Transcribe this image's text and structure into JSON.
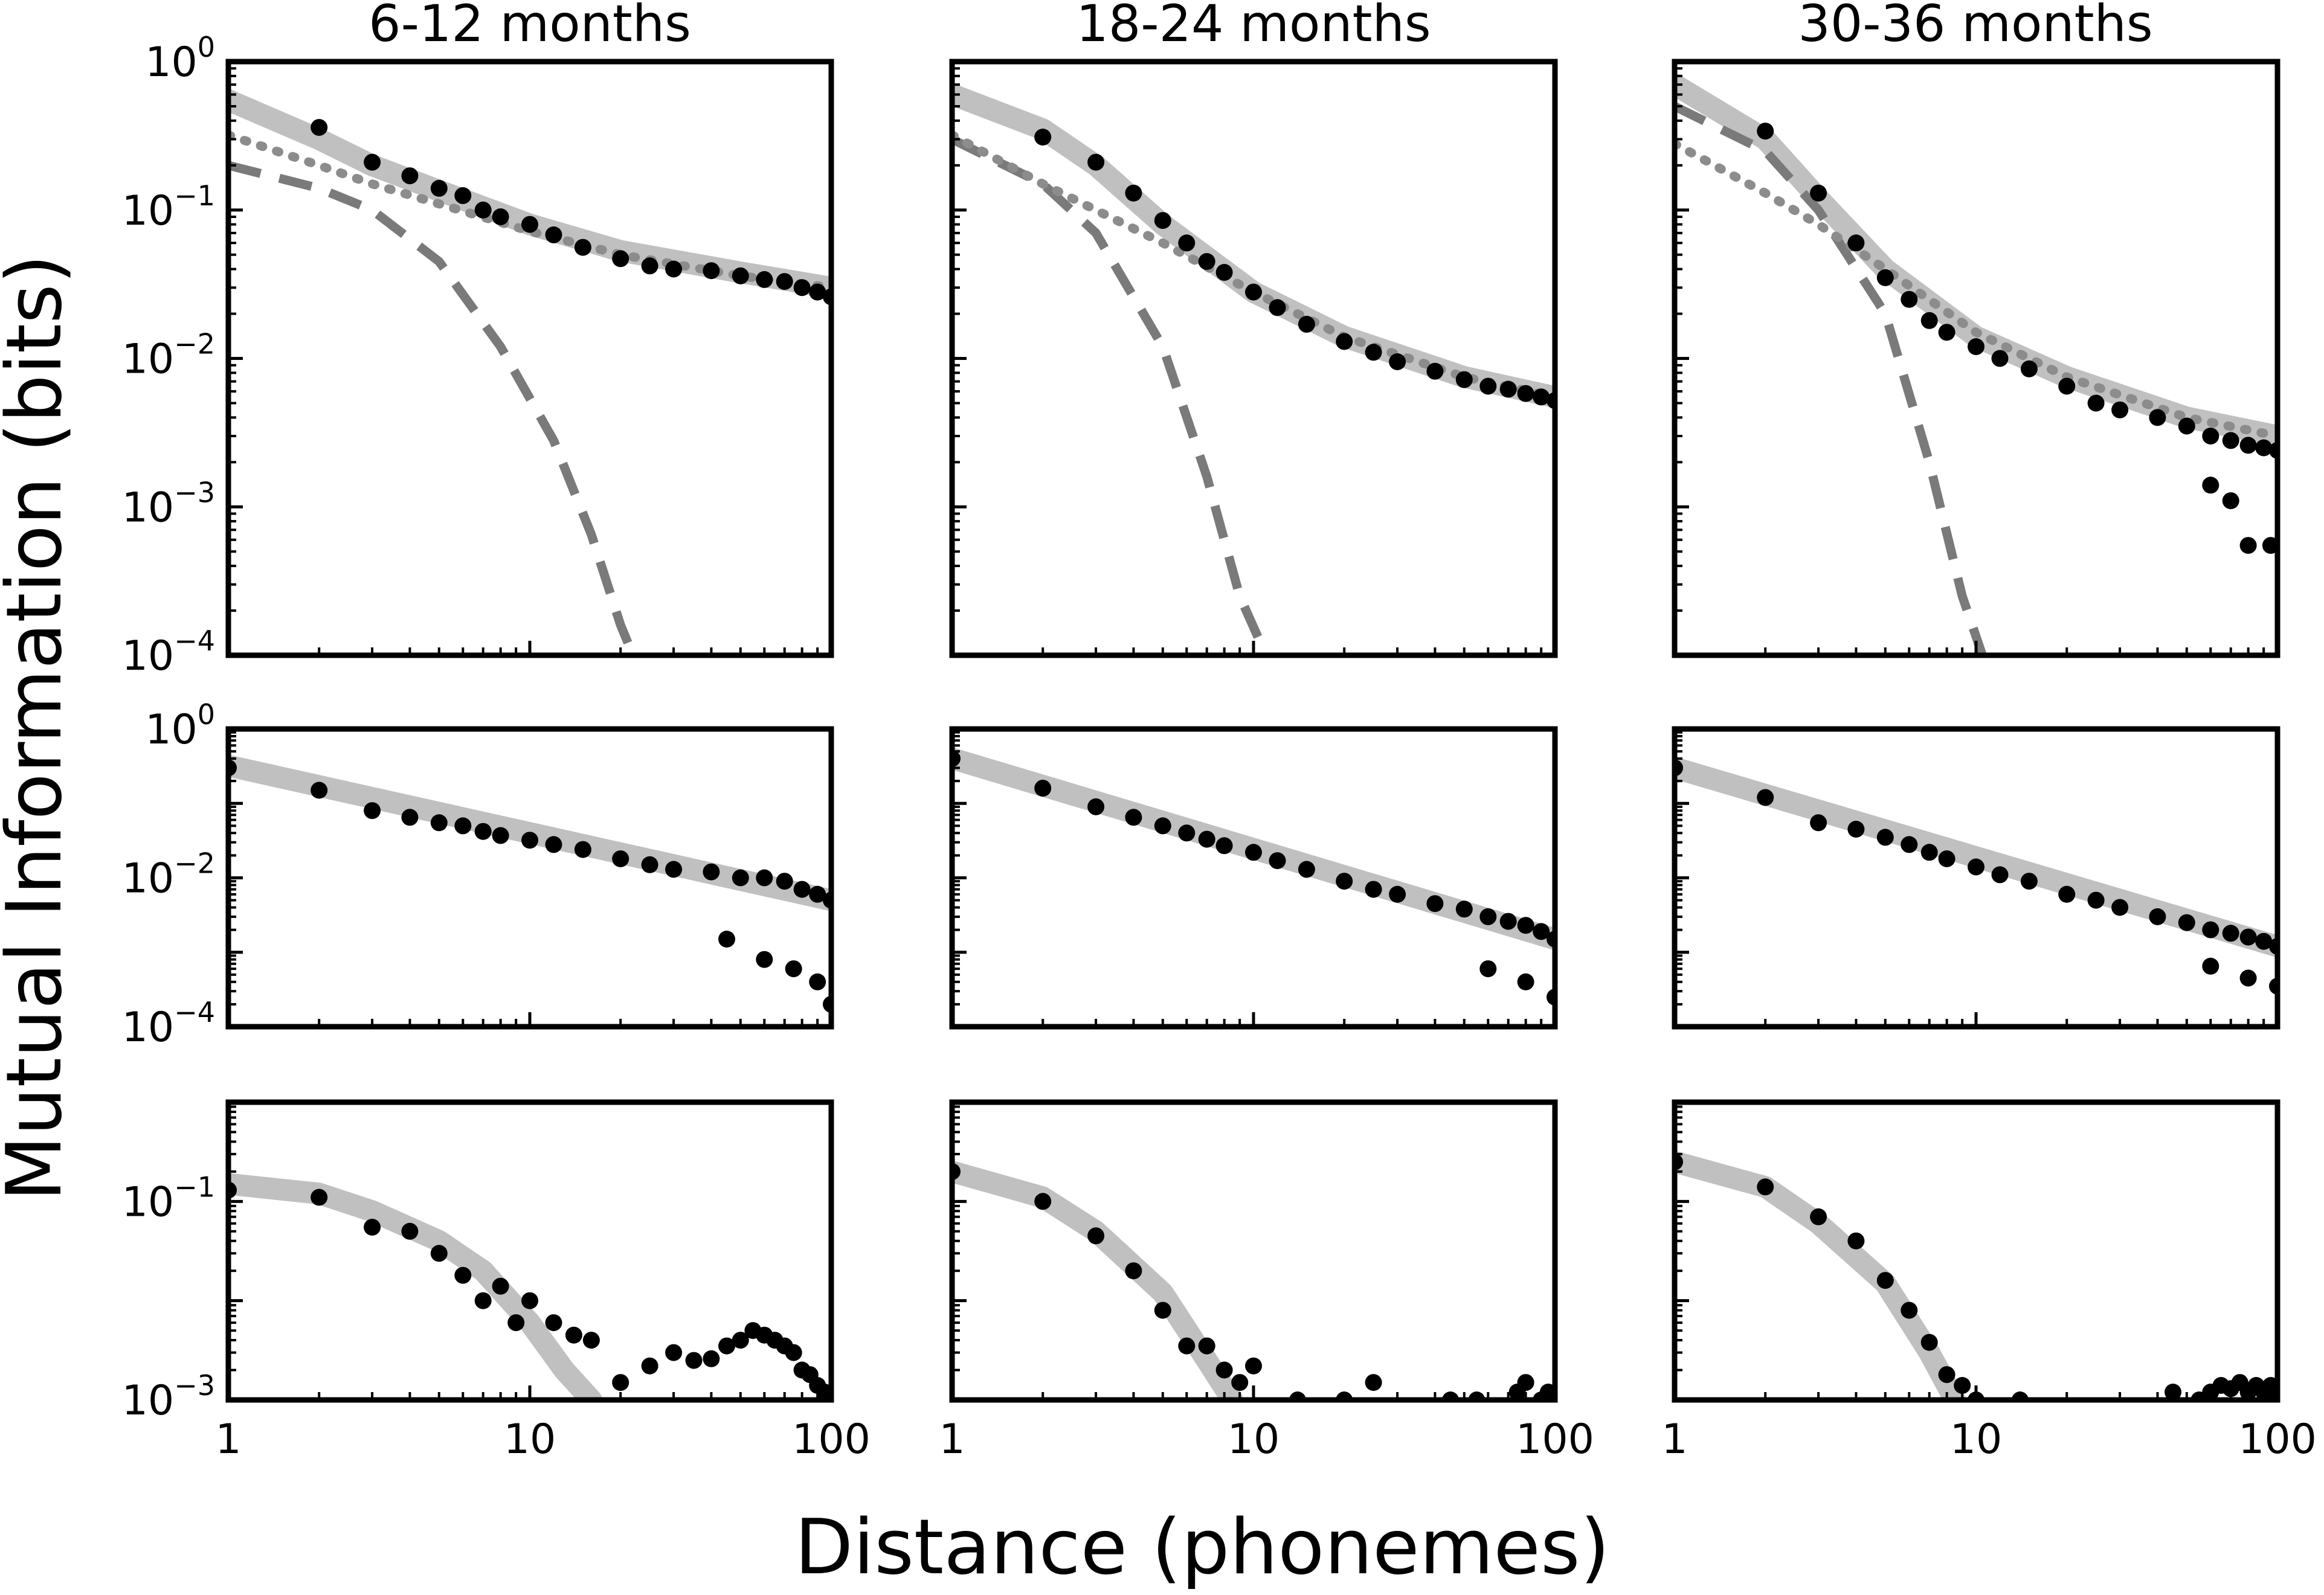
{
  "figure": {
    "ylabel": "Mutual Information (bits)",
    "xlabel": "Distance (phonemes)",
    "columns": [
      "6-12 months",
      "18-24 months",
      "30-36 months"
    ],
    "x_tick_labels": [
      "1",
      "10",
      "100"
    ]
  },
  "chart_data": [
    {
      "type": "scatter",
      "panel": "row1-col1",
      "title": "6-12 months",
      "xscale": "log",
      "yscale": "log",
      "xlim": [
        1,
        100
      ],
      "ylim": [
        0.0001,
        1
      ],
      "xticks": [
        "1",
        "10",
        "100"
      ],
      "yticks": [
        {
          "value": 1,
          "base": "10",
          "exp": "0"
        },
        {
          "value": 0.1,
          "base": "10",
          "exp": "−1"
        },
        {
          "value": 0.01,
          "base": "10",
          "exp": "−2"
        },
        {
          "value": 0.001,
          "base": "10",
          "exp": "−3"
        },
        {
          "value": 0.0001,
          "base": "10",
          "exp": "−4"
        }
      ],
      "data_points": {
        "x": [
          2,
          3,
          4,
          5,
          6,
          7,
          8,
          10,
          12,
          15,
          20,
          25,
          30,
          40,
          50,
          60,
          70,
          80,
          90,
          100
        ],
        "y": [
          0.36,
          0.21,
          0.17,
          0.14,
          0.125,
          0.1,
          0.09,
          0.08,
          0.068,
          0.056,
          0.047,
          0.042,
          0.04,
          0.039,
          0.036,
          0.034,
          0.033,
          0.03,
          0.028,
          0.026
        ]
      },
      "fit_curves": [
        {
          "style": "thick-light-gray",
          "x": [
            1,
            2,
            3,
            5,
            10,
            20,
            50,
            100
          ],
          "y": [
            0.55,
            0.3,
            0.2,
            0.135,
            0.08,
            0.053,
            0.038,
            0.03
          ]
        },
        {
          "style": "dashed-gray",
          "x": [
            1,
            2,
            3,
            5,
            8,
            12,
            16,
            20,
            22
          ],
          "y": [
            0.2,
            0.14,
            0.1,
            0.045,
            0.012,
            0.0028,
            0.00065,
            0.00016,
            0.0001
          ]
        },
        {
          "style": "dotted-gray",
          "x": [
            1,
            2,
            3,
            5,
            10,
            20,
            50,
            100
          ],
          "y": [
            0.32,
            0.2,
            0.15,
            0.11,
            0.072,
            0.05,
            0.036,
            0.03
          ]
        }
      ]
    },
    {
      "type": "scatter",
      "panel": "row1-col2",
      "title": "18-24 months",
      "xscale": "log",
      "yscale": "log",
      "xlim": [
        1,
        100
      ],
      "ylim": [
        0.0001,
        1
      ],
      "xticks": [
        "1",
        "10",
        "100"
      ],
      "yticks": [],
      "data_points": {
        "x": [
          2,
          3,
          4,
          5,
          6,
          7,
          8,
          10,
          12,
          15,
          20,
          25,
          30,
          40,
          50,
          60,
          70,
          80,
          90,
          100
        ],
        "y": [
          0.31,
          0.21,
          0.13,
          0.085,
          0.06,
          0.045,
          0.038,
          0.028,
          0.022,
          0.017,
          0.013,
          0.011,
          0.0095,
          0.0082,
          0.0072,
          0.0065,
          0.0062,
          0.0058,
          0.0055,
          0.0052
        ]
      },
      "fit_curves": [
        {
          "style": "thick-light-gray",
          "x": [
            1,
            2,
            3,
            5,
            10,
            20,
            50,
            100
          ],
          "y": [
            0.6,
            0.35,
            0.2,
            0.08,
            0.028,
            0.014,
            0.0075,
            0.0055
          ]
        },
        {
          "style": "dashed-gray",
          "x": [
            1,
            2,
            3,
            5,
            7,
            9,
            11
          ],
          "y": [
            0.3,
            0.15,
            0.07,
            0.012,
            0.0016,
            0.00025,
            0.0001
          ]
        },
        {
          "style": "dotted-gray",
          "x": [
            1,
            2,
            3,
            5,
            10,
            20,
            50,
            100
          ],
          "y": [
            0.32,
            0.15,
            0.1,
            0.06,
            0.028,
            0.014,
            0.0075,
            0.0055
          ]
        }
      ]
    },
    {
      "type": "scatter",
      "panel": "row1-col3",
      "title": "30-36 months",
      "xscale": "log",
      "yscale": "log",
      "xlim": [
        1,
        100
      ],
      "ylim": [
        0.0001,
        1
      ],
      "xticks": [
        "1",
        "10",
        "100"
      ],
      "yticks": [],
      "data_points": {
        "x": [
          2,
          3,
          4,
          5,
          6,
          7,
          8,
          10,
          12,
          15,
          20,
          25,
          30,
          40,
          50,
          60,
          70,
          80,
          90,
          100,
          60,
          70,
          80,
          95
        ],
        "y": [
          0.34,
          0.13,
          0.06,
          0.035,
          0.025,
          0.018,
          0.015,
          0.012,
          0.01,
          0.0085,
          0.0065,
          0.005,
          0.0045,
          0.004,
          0.0035,
          0.003,
          0.0028,
          0.0026,
          0.0025,
          0.0024,
          0.0014,
          0.0011,
          0.00055,
          0.00055
        ]
      },
      "fit_curves": [
        {
          "style": "thick-light-gray",
          "x": [
            1,
            2,
            3,
            5,
            10,
            20,
            50,
            100
          ],
          "y": [
            0.7,
            0.3,
            0.12,
            0.04,
            0.014,
            0.0075,
            0.004,
            0.003
          ]
        },
        {
          "style": "dashed-gray",
          "x": [
            1,
            2,
            3,
            5,
            7,
            9,
            10.5
          ],
          "y": [
            0.5,
            0.25,
            0.1,
            0.02,
            0.002,
            0.00025,
            0.0001
          ]
        },
        {
          "style": "dotted-gray",
          "x": [
            1,
            2,
            3,
            5,
            10,
            20,
            50,
            100
          ],
          "y": [
            0.28,
            0.13,
            0.08,
            0.04,
            0.015,
            0.0075,
            0.004,
            0.003
          ]
        }
      ]
    },
    {
      "type": "scatter",
      "panel": "row2-col1",
      "xscale": "log",
      "yscale": "log",
      "xlim": [
        1,
        100
      ],
      "ylim": [
        0.0001,
        1
      ],
      "xticks": [
        "1",
        "10",
        "100"
      ],
      "yticks": [
        {
          "value": 1,
          "base": "10",
          "exp": "0"
        },
        {
          "value": 0.01,
          "base": "10",
          "exp": "−2"
        },
        {
          "value": 0.0001,
          "base": "10",
          "exp": "−4"
        }
      ],
      "data_points": {
        "x": [
          1,
          2,
          3,
          4,
          5,
          6,
          7,
          8,
          10,
          12,
          15,
          20,
          25,
          30,
          40,
          50,
          60,
          70,
          80,
          90,
          100,
          45,
          60,
          75,
          90,
          100
        ],
        "y": [
          0.3,
          0.15,
          0.08,
          0.065,
          0.055,
          0.05,
          0.042,
          0.037,
          0.032,
          0.028,
          0.024,
          0.018,
          0.015,
          0.013,
          0.012,
          0.01,
          0.01,
          0.009,
          0.007,
          0.006,
          0.005,
          0.0015,
          0.0008,
          0.0006,
          0.0004,
          0.0002
        ]
      },
      "fit_curves": [
        {
          "style": "thick-light-gray",
          "x": [
            1,
            100
          ],
          "y": [
            0.32,
            0.005
          ]
        }
      ]
    },
    {
      "type": "scatter",
      "panel": "row2-col2",
      "xscale": "log",
      "yscale": "log",
      "xlim": [
        1,
        100
      ],
      "ylim": [
        0.0001,
        1
      ],
      "xticks": [
        "1",
        "10",
        "100"
      ],
      "yticks": [],
      "data_points": {
        "x": [
          1,
          2,
          3,
          4,
          5,
          6,
          7,
          8,
          10,
          12,
          15,
          20,
          25,
          30,
          40,
          50,
          60,
          70,
          80,
          90,
          100,
          60,
          80,
          100
        ],
        "y": [
          0.4,
          0.16,
          0.09,
          0.065,
          0.05,
          0.04,
          0.033,
          0.027,
          0.022,
          0.017,
          0.013,
          0.009,
          0.007,
          0.006,
          0.0045,
          0.0038,
          0.003,
          0.0026,
          0.0023,
          0.0019,
          0.0015,
          0.0006,
          0.0004,
          0.00025
        ]
      },
      "fit_curves": [
        {
          "style": "thick-light-gray",
          "x": [
            1,
            100
          ],
          "y": [
            0.4,
            0.0015
          ]
        }
      ]
    },
    {
      "type": "scatter",
      "panel": "row2-col3",
      "xscale": "log",
      "yscale": "log",
      "xlim": [
        1,
        100
      ],
      "ylim": [
        0.0001,
        1
      ],
      "xticks": [
        "1",
        "10",
        "100"
      ],
      "yticks": [],
      "data_points": {
        "x": [
          1,
          2,
          3,
          4,
          5,
          6,
          7,
          8,
          10,
          12,
          15,
          20,
          25,
          30,
          40,
          50,
          60,
          70,
          80,
          90,
          100,
          60,
          80,
          100
        ],
        "y": [
          0.3,
          0.12,
          0.055,
          0.045,
          0.035,
          0.028,
          0.022,
          0.018,
          0.014,
          0.011,
          0.009,
          0.006,
          0.005,
          0.004,
          0.003,
          0.0025,
          0.002,
          0.0018,
          0.0016,
          0.0014,
          0.0012,
          0.00065,
          0.00045,
          0.00035
        ]
      },
      "fit_curves": [
        {
          "style": "thick-light-gray",
          "x": [
            1,
            100
          ],
          "y": [
            0.3,
            0.0012
          ]
        }
      ]
    },
    {
      "type": "scatter",
      "panel": "row3-col1",
      "xscale": "log",
      "yscale": "log",
      "xlim": [
        1,
        100
      ],
      "ylim": [
        0.001,
        1
      ],
      "xticks": [
        "1",
        "10",
        "100"
      ],
      "yticks": [
        {
          "value": 0.1,
          "base": "10",
          "exp": "−1"
        },
        {
          "value": 0.001,
          "base": "10",
          "exp": "−3"
        }
      ],
      "data_points": {
        "x": [
          1,
          2,
          3,
          4,
          5,
          6,
          7,
          8,
          9,
          10,
          12,
          14,
          16,
          20,
          25,
          30,
          35,
          40,
          45,
          50,
          55,
          60,
          65,
          70,
          75,
          80,
          85,
          90,
          95,
          100
        ],
        "y": [
          0.13,
          0.11,
          0.055,
          0.05,
          0.03,
          0.018,
          0.01,
          0.014,
          0.006,
          0.01,
          0.006,
          0.0045,
          0.004,
          0.0015,
          0.0022,
          0.003,
          0.0025,
          0.0026,
          0.0035,
          0.004,
          0.005,
          0.0045,
          0.004,
          0.0035,
          0.003,
          0.002,
          0.0018,
          0.0014,
          0.0012,
          0.0011
        ]
      },
      "fit_curves": [
        {
          "style": "thick-light-gray",
          "x": [
            1,
            2,
            3,
            5,
            7,
            10,
            13,
            16
          ],
          "y": [
            0.15,
            0.12,
            0.08,
            0.04,
            0.02,
            0.006,
            0.002,
            0.001
          ]
        }
      ]
    },
    {
      "type": "scatter",
      "panel": "row3-col2",
      "xscale": "log",
      "yscale": "log",
      "xlim": [
        1,
        100
      ],
      "ylim": [
        0.001,
        1
      ],
      "xticks": [
        "1",
        "10",
        "100"
      ],
      "yticks": [],
      "data_points": {
        "x": [
          1,
          2,
          3,
          4,
          5,
          6,
          7,
          8,
          9,
          10,
          14,
          20,
          25,
          45,
          55,
          75,
          80,
          90,
          95,
          100
        ],
        "y": [
          0.2,
          0.1,
          0.045,
          0.02,
          0.008,
          0.0035,
          0.0035,
          0.002,
          0.0015,
          0.0022,
          0.001,
          0.001,
          0.0015,
          0.001,
          0.001,
          0.0012,
          0.0015,
          0.001,
          0.0012,
          0.001
        ]
      },
      "fit_curves": [
        {
          "style": "thick-light-gray",
          "x": [
            1,
            2,
            3,
            5,
            7,
            8.5
          ],
          "y": [
            0.2,
            0.11,
            0.05,
            0.012,
            0.0025,
            0.001
          ]
        }
      ]
    },
    {
      "type": "scatter",
      "panel": "row3-col3",
      "xscale": "log",
      "yscale": "log",
      "xlim": [
        1,
        100
      ],
      "ylim": [
        0.001,
        1
      ],
      "xticks": [
        "1",
        "10",
        "100"
      ],
      "yticks": [],
      "data_points": {
        "x": [
          1,
          2,
          3,
          4,
          5,
          6,
          7,
          8,
          9,
          10,
          14,
          45,
          55,
          60,
          65,
          70,
          75,
          80,
          85,
          90,
          95,
          100
        ],
        "y": [
          0.25,
          0.14,
          0.07,
          0.04,
          0.016,
          0.008,
          0.0038,
          0.0018,
          0.0014,
          0.001,
          0.001,
          0.0012,
          0.001,
          0.0012,
          0.0014,
          0.0013,
          0.0015,
          0.0012,
          0.0014,
          0.0012,
          0.0014,
          0.0012
        ]
      },
      "fit_curves": [
        {
          "style": "thick-light-gray",
          "x": [
            1,
            2,
            3,
            5,
            7,
            8.5
          ],
          "y": [
            0.25,
            0.14,
            0.06,
            0.015,
            0.003,
            0.001
          ]
        }
      ]
    }
  ]
}
